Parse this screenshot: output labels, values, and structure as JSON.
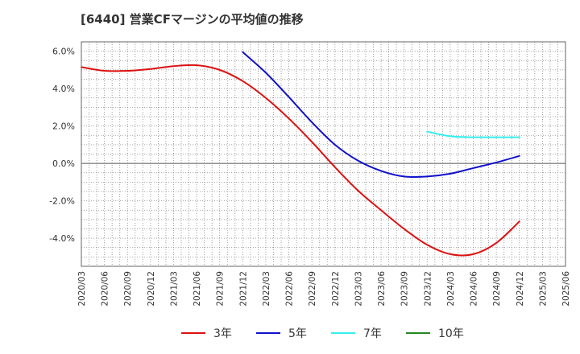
{
  "title": "[6440]  営業CFマージンの平均値の推移",
  "chart_data": {
    "type": "line",
    "title": "[6440]  営業CFマージンの平均値の推移",
    "xlabel": "",
    "ylabel": "",
    "categories": [
      "2020/03",
      "2020/06",
      "2020/09",
      "2020/12",
      "2021/03",
      "2021/06",
      "2021/09",
      "2021/12",
      "2022/03",
      "2022/06",
      "2022/09",
      "2022/12",
      "2023/03",
      "2023/06",
      "2023/09",
      "2023/12",
      "2024/03",
      "2024/06",
      "2024/09",
      "2024/12",
      "2025/03",
      "2025/06"
    ],
    "ylim": [
      -5.5,
      6.5
    ],
    "yticks": [
      -4.0,
      -2.0,
      0.0,
      2.0,
      4.0,
      6.0
    ],
    "ytick_labels": [
      "-4.0%",
      "-2.0%",
      "0.0%",
      "2.0%",
      "4.0%",
      "6.0%"
    ],
    "grid": true,
    "legend_position": "bottom",
    "series": [
      {
        "name": "3年",
        "color": "#dd1111",
        "values": [
          5.15,
          4.95,
          4.95,
          5.05,
          5.2,
          5.25,
          5.0,
          4.4,
          3.5,
          2.4,
          1.15,
          -0.2,
          -1.45,
          -2.5,
          -3.5,
          -4.35,
          -4.85,
          -4.85,
          -4.25,
          -3.1,
          null,
          null
        ]
      },
      {
        "name": "5年",
        "color": "#1111cc",
        "values": [
          null,
          null,
          null,
          null,
          null,
          null,
          null,
          5.95,
          4.85,
          3.55,
          2.2,
          1.0,
          0.15,
          -0.4,
          -0.7,
          -0.7,
          -0.55,
          -0.25,
          0.05,
          0.4,
          null,
          null
        ]
      },
      {
        "name": "7年",
        "color": "#33eeee",
        "values": [
          null,
          null,
          null,
          null,
          null,
          null,
          null,
          null,
          null,
          null,
          null,
          null,
          null,
          null,
          null,
          1.7,
          1.45,
          1.4,
          1.4,
          1.4,
          null,
          null
        ]
      },
      {
        "name": "10年",
        "color": "#228822",
        "values": [
          null,
          null,
          null,
          null,
          null,
          null,
          null,
          null,
          null,
          null,
          null,
          null,
          null,
          null,
          null,
          null,
          null,
          null,
          null,
          null,
          null,
          null
        ]
      }
    ]
  }
}
